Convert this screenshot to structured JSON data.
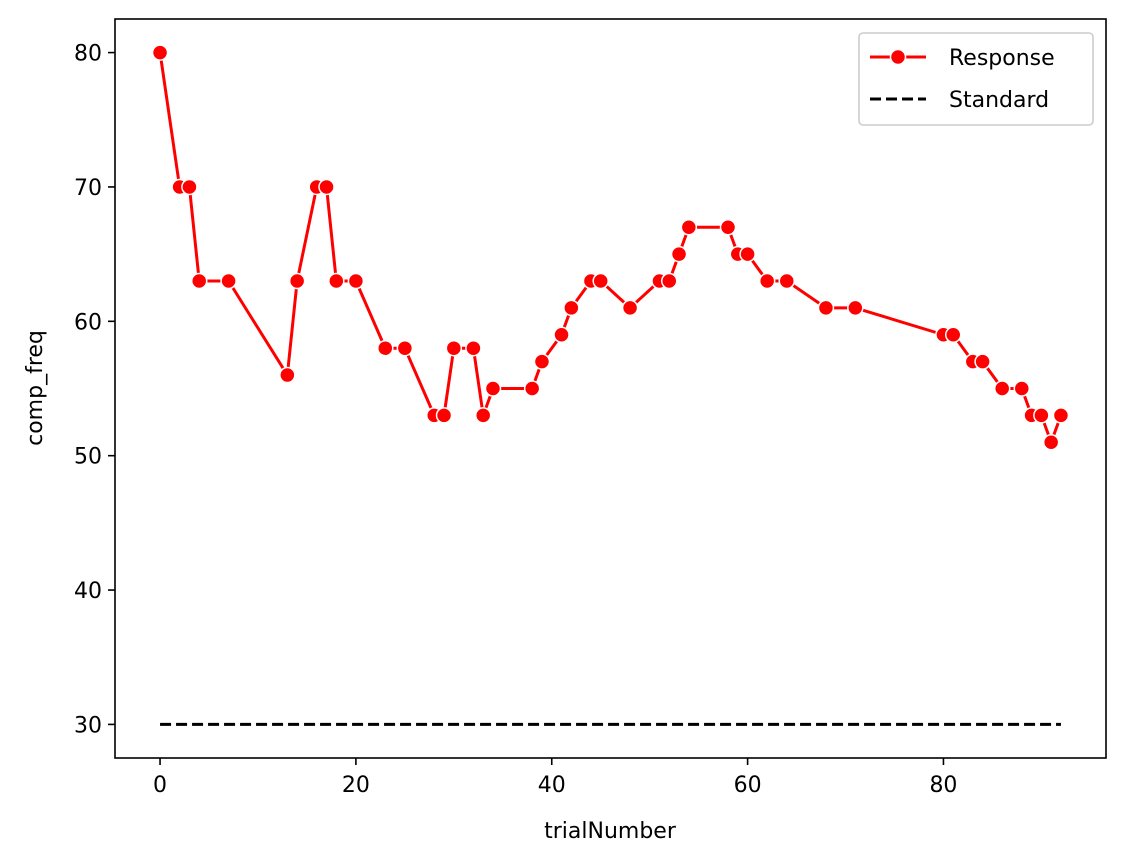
{
  "chart_data": {
    "type": "line",
    "title": "",
    "xlabel": "trialNumber",
    "ylabel": "comp_freq",
    "xlim": [
      -4.6,
      96.6
    ],
    "ylim": [
      27.5,
      82.5
    ],
    "x_ticks": [
      0,
      20,
      40,
      60,
      80
    ],
    "y_ticks": [
      30,
      40,
      50,
      60,
      70,
      80
    ],
    "grid": false,
    "legend_position": "top-right",
    "series": [
      {
        "name": "Response",
        "color": "#ff0000",
        "style": "solid",
        "marker": "circle",
        "points": [
          [
            0,
            80
          ],
          [
            2,
            70
          ],
          [
            3,
            70
          ],
          [
            4,
            63
          ],
          [
            7,
            63
          ],
          [
            13,
            56
          ],
          [
            14,
            63
          ],
          [
            16,
            70
          ],
          [
            17,
            70
          ],
          [
            18,
            63
          ],
          [
            20,
            63
          ],
          [
            23,
            58
          ],
          [
            25,
            58
          ],
          [
            28,
            53
          ],
          [
            29,
            53
          ],
          [
            30,
            58
          ],
          [
            32,
            58
          ],
          [
            33,
            53
          ],
          [
            34,
            55
          ],
          [
            38,
            55
          ],
          [
            39,
            57
          ],
          [
            41,
            59
          ],
          [
            42,
            61
          ],
          [
            44,
            63
          ],
          [
            45,
            63
          ],
          [
            48,
            61
          ],
          [
            51,
            63
          ],
          [
            52,
            63
          ],
          [
            53,
            65
          ],
          [
            54,
            67
          ],
          [
            58,
            67
          ],
          [
            59,
            65
          ],
          [
            60,
            65
          ],
          [
            62,
            63
          ],
          [
            64,
            63
          ],
          [
            68,
            61
          ],
          [
            71,
            61
          ],
          [
            80,
            59
          ],
          [
            81,
            59
          ],
          [
            83,
            57
          ],
          [
            84,
            57
          ],
          [
            86,
            55
          ],
          [
            88,
            55
          ],
          [
            89,
            53
          ],
          [
            90,
            53
          ],
          [
            91,
            51
          ],
          [
            92,
            53
          ]
        ]
      },
      {
        "name": "Standard",
        "color": "#000000",
        "style": "dashed",
        "marker": "none",
        "points": [
          [
            0,
            30
          ],
          [
            92,
            30
          ]
        ]
      }
    ]
  }
}
